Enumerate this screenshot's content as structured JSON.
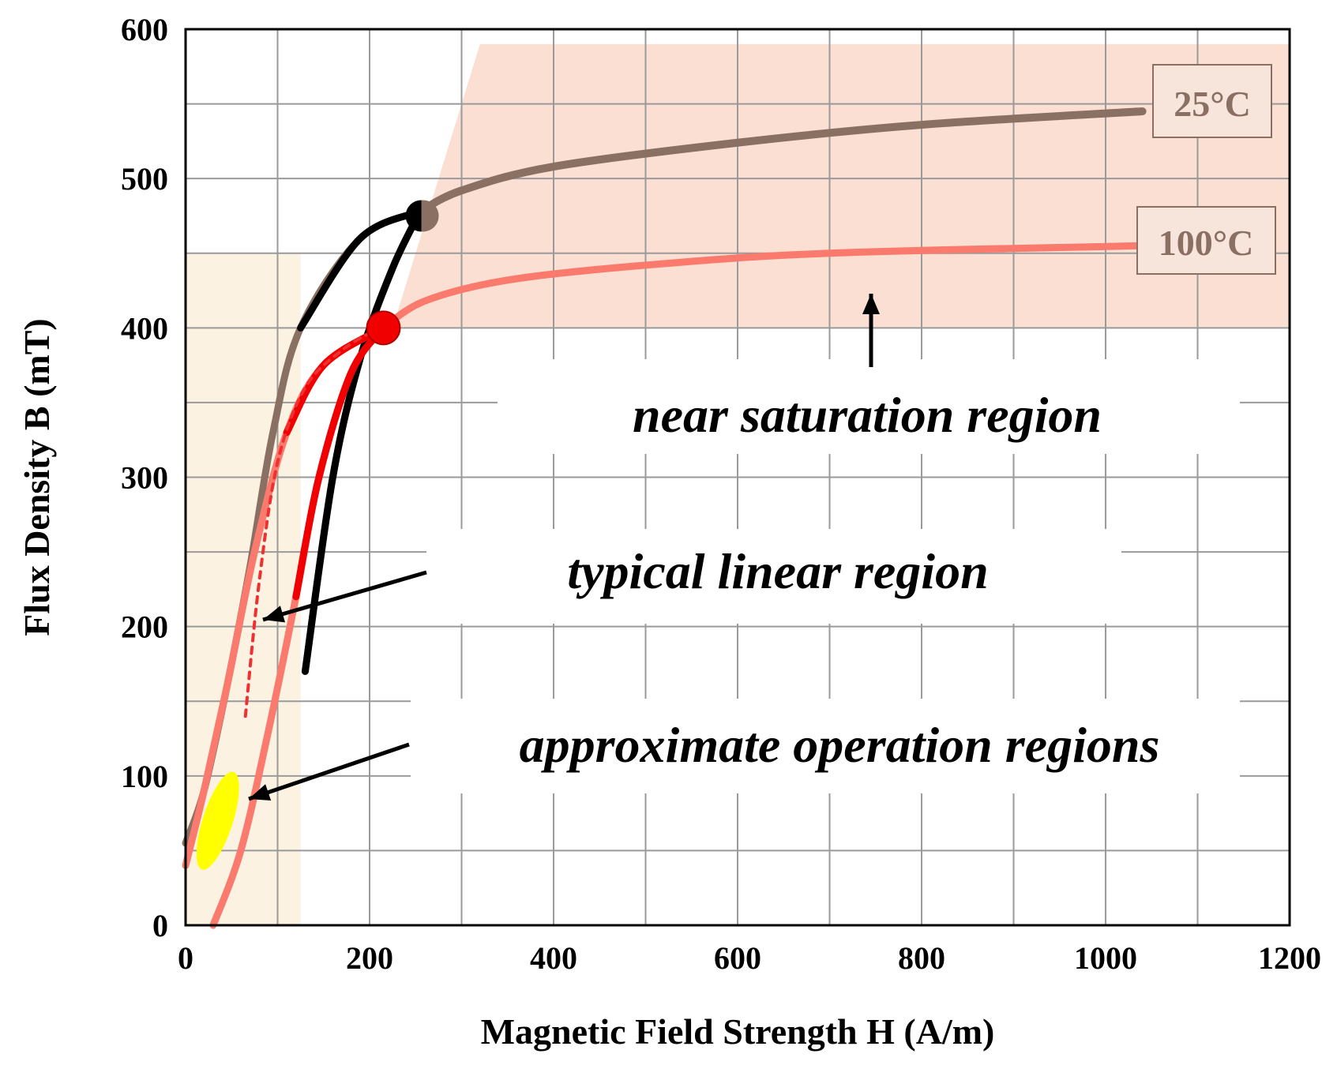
{
  "chart_data": {
    "type": "line",
    "title": "",
    "xlabel": "Magnetic Field Strength H (A/m)",
    "ylabel": "Flux Density B (mT)",
    "xlim": [
      0,
      1200
    ],
    "ylim": [
      0,
      600
    ],
    "x_ticks": [
      "0",
      "200",
      "400",
      "600",
      "800",
      "1000",
      "1200"
    ],
    "y_ticks": [
      "0",
      "100",
      "200",
      "300",
      "400",
      "500",
      "600"
    ],
    "grid": true,
    "series": [
      {
        "name": "25°C",
        "color": "#8a7063",
        "ascending": [
          [
            130,
            170
          ],
          [
            160,
            300
          ],
          [
            190,
            380
          ],
          [
            225,
            440
          ],
          [
            255,
            478
          ]
        ],
        "descending": [
          [
            255,
            478
          ],
          [
            190,
            460
          ],
          [
            125,
            400
          ],
          [
            95,
            330
          ],
          [
            70,
            240
          ],
          [
            45,
            160
          ],
          [
            20,
            90
          ],
          [
            0,
            55
          ]
        ],
        "saturation": [
          [
            255,
            478
          ],
          [
            300,
            492
          ],
          [
            400,
            508
          ],
          [
            600,
            524
          ],
          [
            800,
            536
          ],
          [
            1040,
            545
          ]
        ],
        "saturation_point": [
          258,
          475
        ]
      },
      {
        "name": "100°C",
        "color": "#fa7a6e",
        "ascending": [
          [
            30,
            0
          ],
          [
            60,
            50
          ],
          [
            90,
            130
          ],
          [
            120,
            220
          ],
          [
            145,
            300
          ],
          [
            180,
            370
          ],
          [
            215,
            400
          ]
        ],
        "descending": [
          [
            215,
            400
          ],
          [
            150,
            375
          ],
          [
            110,
            330
          ],
          [
            75,
            250
          ],
          [
            45,
            160
          ],
          [
            20,
            90
          ],
          [
            0,
            40
          ]
        ],
        "initial_dashed": [
          [
            65,
            140
          ],
          [
            80,
            230
          ],
          [
            100,
            310
          ],
          [
            130,
            360
          ],
          [
            170,
            385
          ],
          [
            210,
            400
          ]
        ],
        "saturation": [
          [
            215,
            400
          ],
          [
            260,
            418
          ],
          [
            350,
            432
          ],
          [
            500,
            442
          ],
          [
            700,
            450
          ],
          [
            1040,
            455
          ]
        ],
        "saturation_point": [
          215,
          400
        ]
      }
    ],
    "regions": [
      {
        "name": "typical linear region",
        "color": "#fbf2e2"
      },
      {
        "name": "near saturation region",
        "color": "#fadfd2"
      }
    ],
    "operation_region": {
      "color": "#ffff00",
      "center": [
        35,
        70
      ],
      "rx": 19,
      "ry": 65
    },
    "annotations": {
      "near_saturation": "near saturation region",
      "typical_linear": "typical linear region",
      "approx_operation": "approximate operation regions",
      "label_25c": "25°C",
      "label_100c": "100°C"
    }
  }
}
